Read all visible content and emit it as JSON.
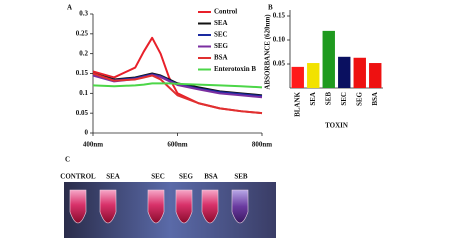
{
  "panels": [
    "A",
    "B",
    "C"
  ],
  "chart_data": [
    {
      "type": "line",
      "x": [
        400,
        450,
        500,
        520,
        540,
        560,
        580,
        600,
        650,
        700,
        750,
        800
      ],
      "xlim": [
        400,
        800
      ],
      "xticks": [
        {
          "value": 400,
          "label": "400nm"
        },
        {
          "value": 600,
          "label": "600nm"
        },
        {
          "value": 800,
          "label": "800nm"
        }
      ],
      "ylim": [
        0,
        0.3
      ],
      "yticks": [
        0,
        0.05,
        0.1,
        0.15,
        0.2,
        0.25,
        0.3
      ],
      "series": [
        {
          "name": "Control",
          "color": "#e8202a",
          "values": [
            0.155,
            0.14,
            0.165,
            0.205,
            0.24,
            0.2,
            0.14,
            0.1,
            0.075,
            0.062,
            0.055,
            0.05
          ]
        },
        {
          "name": "SEA",
          "color": "#111111",
          "values": [
            0.15,
            0.135,
            0.14,
            0.145,
            0.15,
            0.145,
            0.135,
            0.125,
            0.115,
            0.105,
            0.1,
            0.095
          ]
        },
        {
          "name": "SEC",
          "color": "#1a2aa0",
          "values": [
            0.148,
            0.133,
            0.138,
            0.143,
            0.148,
            0.143,
            0.133,
            0.123,
            0.112,
            0.103,
            0.098,
            0.093
          ]
        },
        {
          "name": "SEG",
          "color": "#7b2fa0",
          "values": [
            0.145,
            0.13,
            0.136,
            0.141,
            0.146,
            0.141,
            0.131,
            0.121,
            0.11,
            0.1,
            0.095,
            0.09
          ]
        },
        {
          "name": "BSA",
          "color": "#e03030",
          "values": [
            0.15,
            0.132,
            0.135,
            0.14,
            0.145,
            0.135,
            0.115,
            0.095,
            0.075,
            0.062,
            0.055,
            0.05
          ]
        },
        {
          "name": "Enterotoxin B",
          "color": "#4cd648",
          "values": [
            0.12,
            0.118,
            0.12,
            0.122,
            0.125,
            0.125,
            0.125,
            0.124,
            0.122,
            0.12,
            0.118,
            0.115
          ]
        }
      ]
    },
    {
      "type": "bar",
      "x_label": "TOXIN",
      "y_label": "ABSORBANCE (620nm)",
      "categories": [
        "BLANK",
        "SEA",
        "SEB",
        "SEC",
        "SEG",
        "BSA"
      ],
      "values": [
        0.044,
        0.052,
        0.119,
        0.065,
        0.063,
        0.052
      ],
      "colors": [
        "#ff1a1a",
        "#f2e200",
        "#1f9a1f",
        "#0a1060",
        "#ee1111",
        "#ee1111"
      ],
      "ylim": [
        0,
        0.15
      ],
      "yticks": [
        0.05,
        {
          "value": 0.1,
          "label": "0.10"
        },
        0.15
      ]
    }
  ],
  "photo": {
    "labels": [
      "CONTROL",
      "SEA",
      "SEC",
      "SEG",
      "BSA",
      "SEB"
    ]
  }
}
